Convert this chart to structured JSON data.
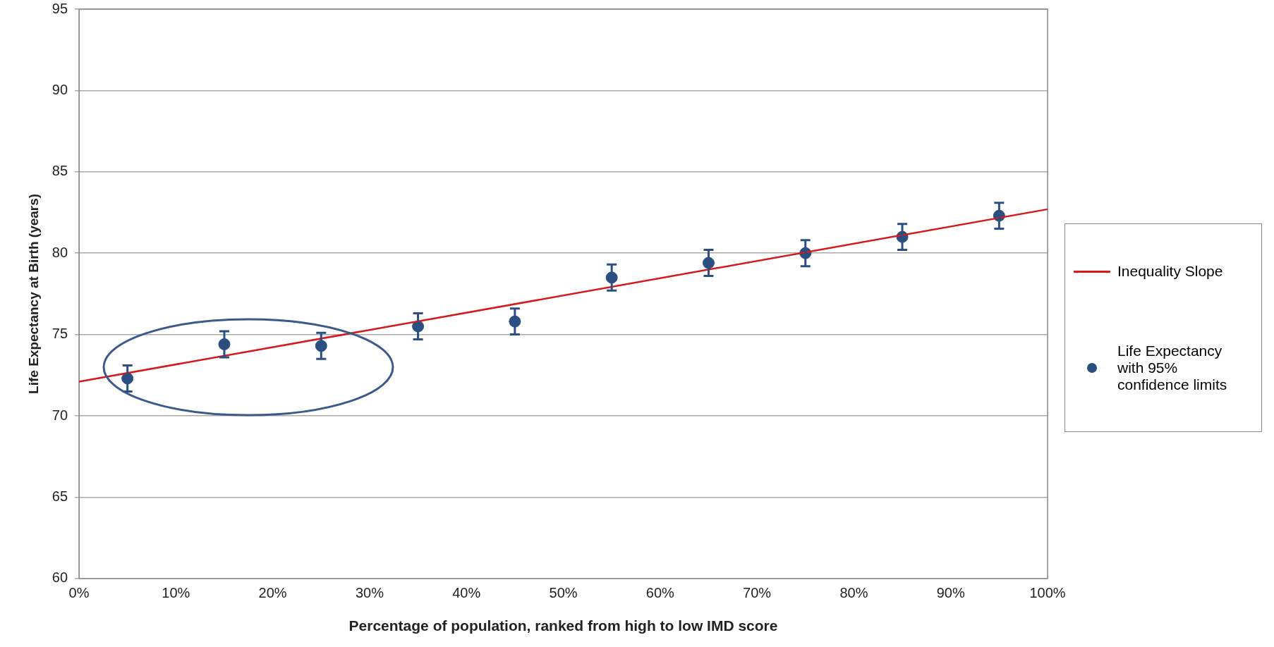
{
  "chart_data": {
    "type": "scatter",
    "xlabel": "Percentage of population, ranked from high to low IMD score",
    "ylabel": "Life Expectancy at Birth (years)",
    "xlim": [
      0,
      100
    ],
    "xticks": [
      {
        "value": 0,
        "label": "0%"
      },
      {
        "value": 10,
        "label": "10%"
      },
      {
        "value": 20,
        "label": "20%"
      },
      {
        "value": 30,
        "label": "30%"
      },
      {
        "value": 40,
        "label": "40%"
      },
      {
        "value": 50,
        "label": "50%"
      },
      {
        "value": 60,
        "label": "60%"
      },
      {
        "value": 70,
        "label": "70%"
      },
      {
        "value": 80,
        "label": "80%"
      },
      {
        "value": 90,
        "label": "90%"
      },
      {
        "value": 100,
        "label": "100%"
      }
    ],
    "ylim": [
      60,
      95
    ],
    "yticks": [
      60,
      65,
      70,
      75,
      80,
      85,
      90,
      95
    ],
    "grid": "y",
    "legend": "right",
    "series": [
      {
        "name": "Inequality Slope",
        "type": "line",
        "color": "#d7191c",
        "marker": "none",
        "x": [
          0,
          100
        ],
        "values": [
          72.1,
          82.7
        ]
      },
      {
        "name": "Life Expectancy with 95% confidence limits",
        "type": "scatter",
        "color": "#2b4f81",
        "marker": "circle",
        "x": [
          5,
          15,
          25,
          35,
          45,
          55,
          65,
          75,
          85,
          95
        ],
        "values": [
          72.3,
          74.4,
          74.3,
          75.5,
          75.8,
          78.5,
          79.4,
          80.0,
          81.0,
          82.3
        ],
        "errors": [
          0.8,
          0.8,
          0.8,
          0.8,
          0.8,
          0.8,
          0.8,
          0.8,
          0.8,
          0.8
        ]
      }
    ]
  }
}
